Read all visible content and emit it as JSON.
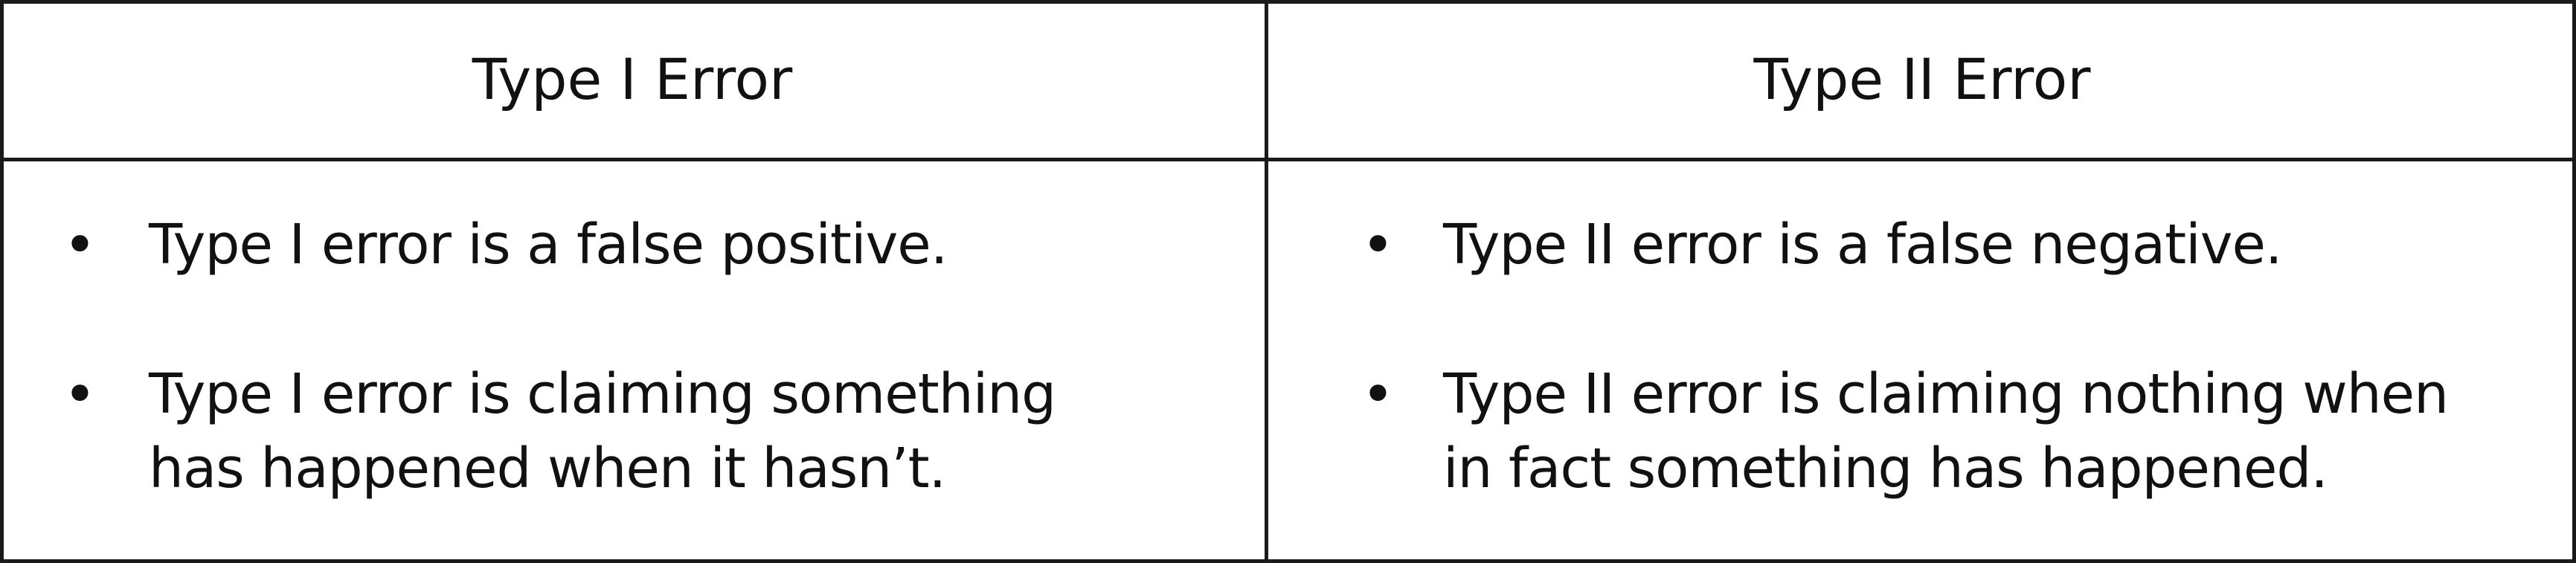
{
  "table": {
    "headers": [
      "Type I Error",
      "Type II Error"
    ],
    "columns": [
      {
        "bullets": [
          "Type I error is a false positive.",
          "Type I error is claiming something\nhas happened when it hasn’t."
        ]
      },
      {
        "bullets": [
          "Type II error is a false negative.",
          "Type II error is claiming nothing when\nin fact something has happened."
        ]
      }
    ],
    "bullet_symbol": "•"
  }
}
